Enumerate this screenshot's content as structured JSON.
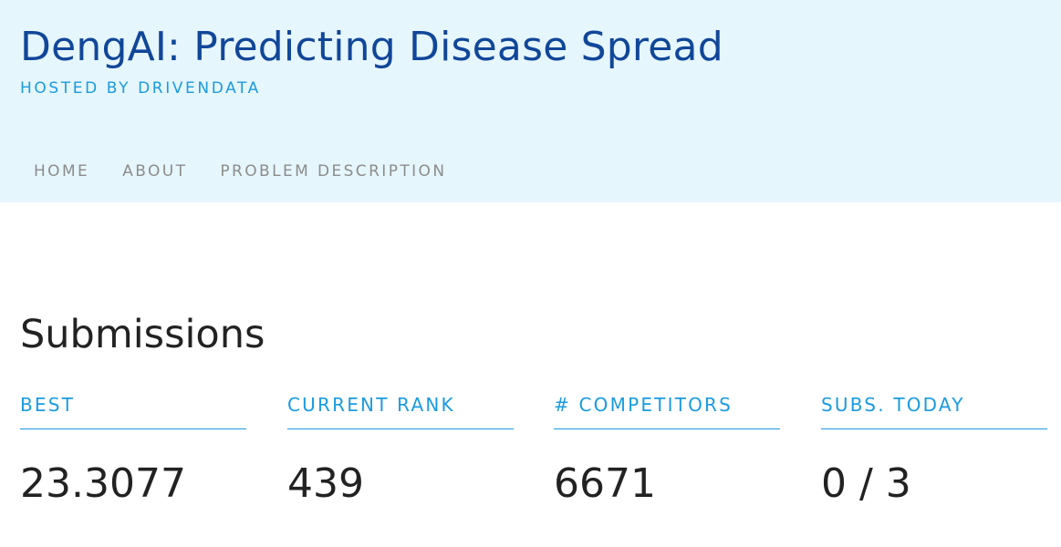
{
  "header": {
    "title": "DengAI: Predicting Disease Spread",
    "hosted_by": "HOSTED BY DRIVENDATA"
  },
  "nav": {
    "items": [
      {
        "label": "HOME"
      },
      {
        "label": "ABOUT"
      },
      {
        "label": "PROBLEM DESCRIPTION"
      }
    ]
  },
  "submissions": {
    "title": "Submissions",
    "stats": [
      {
        "label": "BEST",
        "value": "23.3077"
      },
      {
        "label": "CURRENT RANK",
        "value": "439"
      },
      {
        "label": "# COMPETITORS",
        "value": "6671"
      },
      {
        "label": "SUBS. TODAY",
        "value": "0 / 3"
      }
    ]
  },
  "colors": {
    "header_bg": "#e6f6fd",
    "title": "#114799",
    "accent": "#1a9be0",
    "nav_text": "#8c8c8c",
    "body_text": "#222222"
  }
}
